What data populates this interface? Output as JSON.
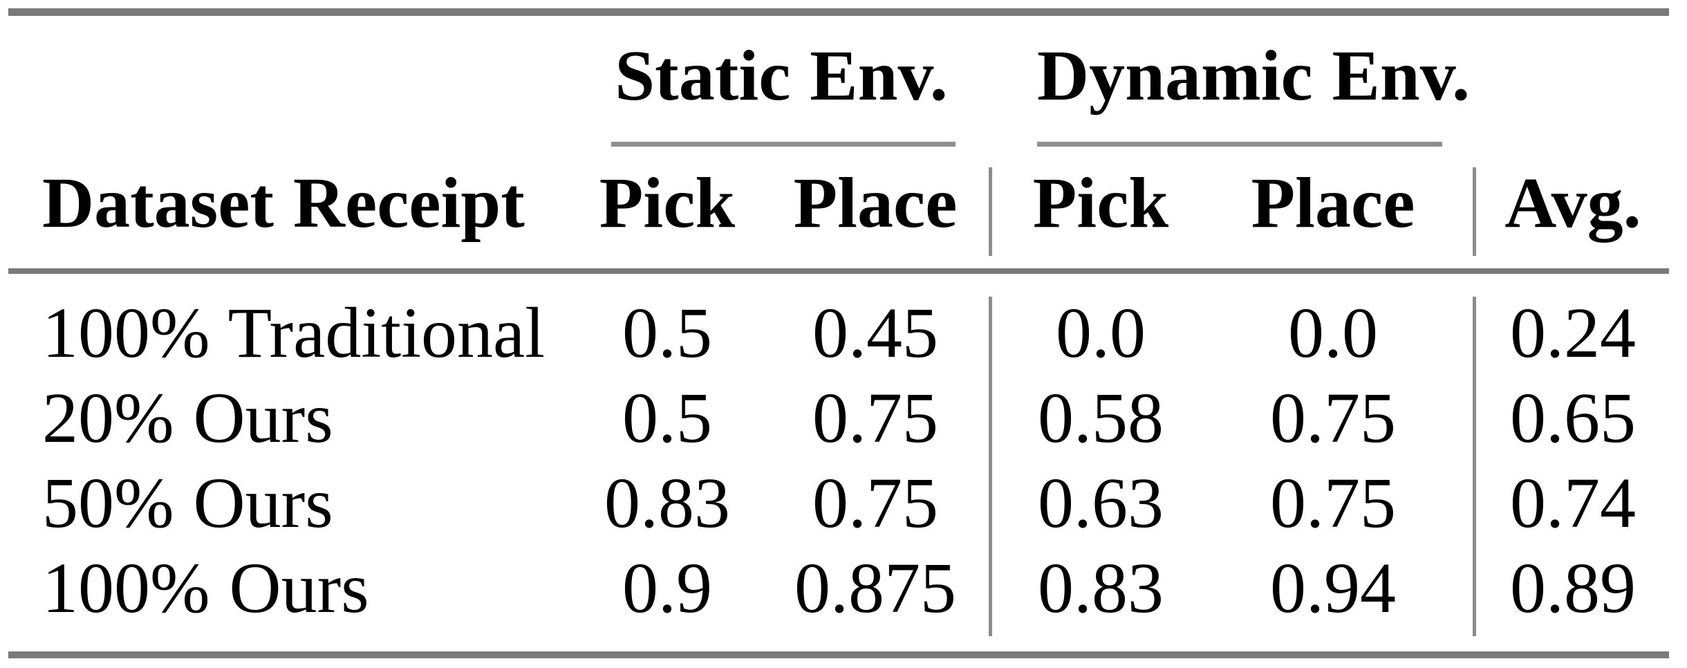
{
  "colors": {
    "background": "#ffffff",
    "text": "#000000",
    "rule": "#7a7a7a",
    "divider": "#8c8c8c"
  },
  "table": {
    "row_header": "Dataset Receipt",
    "avg_header": "Avg.",
    "groups": [
      {
        "label": "Static Env.",
        "columns": [
          "Pick",
          "Place"
        ]
      },
      {
        "label": "Dynamic Env.",
        "columns": [
          "Pick",
          "Place"
        ]
      }
    ],
    "rows": [
      {
        "label": "100% Traditional",
        "static_pick": "0.5",
        "static_place": "0.45",
        "dynamic_pick": "0.0",
        "dynamic_place": "0.0",
        "avg": "0.24"
      },
      {
        "label": "20% Ours",
        "static_pick": "0.5",
        "static_place": "0.75",
        "dynamic_pick": "0.58",
        "dynamic_place": "0.75",
        "avg": "0.65"
      },
      {
        "label": "50% Ours",
        "static_pick": "0.83",
        "static_place": "0.75",
        "dynamic_pick": "0.63",
        "dynamic_place": "0.75",
        "avg": "0.74"
      },
      {
        "label": "100% Ours",
        "static_pick": "0.9",
        "static_place": "0.875",
        "dynamic_pick": "0.83",
        "dynamic_place": "0.94",
        "avg": "0.89"
      }
    ]
  },
  "chart_data": {
    "type": "table",
    "columns": [
      "Dataset Receipt",
      "Static Env. Pick",
      "Static Env. Place",
      "Dynamic Env. Pick",
      "Dynamic Env. Place",
      "Avg."
    ],
    "rows": [
      [
        "100% Traditional",
        0.5,
        0.45,
        0.0,
        0.0,
        0.24
      ],
      [
        "20% Ours",
        0.5,
        0.75,
        0.58,
        0.75,
        0.65
      ],
      [
        "50% Ours",
        0.83,
        0.75,
        0.63,
        0.75,
        0.74
      ],
      [
        "100% Ours",
        0.9,
        0.875,
        0.83,
        0.94,
        0.89
      ]
    ]
  }
}
